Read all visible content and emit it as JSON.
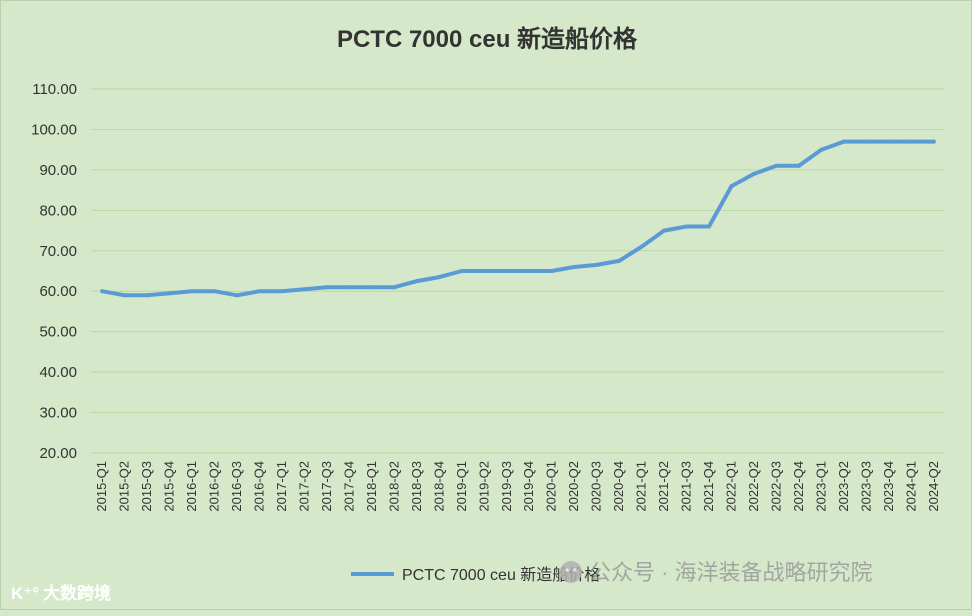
{
  "chart_data": {
    "type": "line",
    "title": "PCTC 7000 ceu 新造船价格",
    "xlabel": "",
    "ylabel": "",
    "ylim": [
      20,
      110
    ],
    "yticks": [
      "20.00",
      "30.00",
      "40.00",
      "50.00",
      "60.00",
      "70.00",
      "80.00",
      "90.00",
      "100.00",
      "110.00"
    ],
    "grid": true,
    "legend_position": "bottom-center",
    "categories": [
      "2015-Q1",
      "2015-Q2",
      "2015-Q3",
      "2015-Q4",
      "2016-Q1",
      "2016-Q2",
      "2016-Q3",
      "2016-Q4",
      "2017-Q1",
      "2017-Q2",
      "2017-Q3",
      "2017-Q4",
      "2018-Q1",
      "2018-Q2",
      "2018-Q3",
      "2018-Q4",
      "2019-Q1",
      "2019-Q2",
      "2019-Q3",
      "2019-Q4",
      "2020-Q1",
      "2020-Q2",
      "2020-Q3",
      "2020-Q4",
      "2021-Q1",
      "2021-Q2",
      "2021-Q3",
      "2021-Q4",
      "2022-Q1",
      "2022-Q2",
      "2022-Q3",
      "2022-Q4",
      "2023-Q1",
      "2023-Q2",
      "2023-Q3",
      "2023-Q4",
      "2024-Q1",
      "2024-Q2"
    ],
    "series": [
      {
        "name": "PCTC 7000 ceu 新造船价格",
        "color": "#5b9bd5",
        "values": [
          60,
          59,
          59,
          59.5,
          60,
          60,
          59,
          60,
          60,
          60.5,
          61,
          61,
          61,
          61,
          62.5,
          63.5,
          65,
          65,
          65,
          65,
          65,
          66,
          66.5,
          67.5,
          71,
          75,
          76,
          76,
          86,
          89,
          91,
          91,
          95,
          97,
          97,
          97,
          97,
          97
        ]
      }
    ]
  },
  "watermark": {
    "wechat_text": "公众号 · 海洋装备战略研究院",
    "logo_text": "大数跨境"
  },
  "colors": {
    "background": "#d5e8c9",
    "gridline": "#b7d9a4",
    "line": "#5b9bd5"
  }
}
